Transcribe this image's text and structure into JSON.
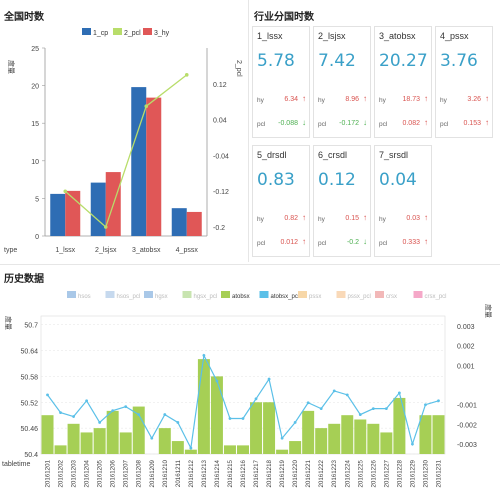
{
  "panels": {
    "overview_title": "全国时数",
    "category_title": "行业分国时数",
    "history_title": "历史数据"
  },
  "chart_data": [
    {
      "type": "bar",
      "title": "",
      "categories": [
        "1_lssx",
        "2_lsjsx",
        "3_atobsx",
        "4_pssx"
      ],
      "xlabel": "type",
      "ylabel": "度量",
      "y2label": "2_pcl",
      "ylim": [
        0,
        25
      ],
      "y2lim": [
        -0.22,
        0.2
      ],
      "yticks": [
        0,
        5,
        10,
        15,
        20,
        25
      ],
      "y2ticks": [
        0.12,
        0.04,
        -0.04,
        -0.12,
        -0.2
      ],
      "legend": "top",
      "series": [
        {
          "name": "1_cp",
          "type": "bar",
          "axis": "left",
          "color": "#2e6db4",
          "values": [
            5.6,
            7.1,
            19.8,
            3.7
          ]
        },
        {
          "name": "2_pcl",
          "type": "line",
          "axis": "right",
          "color": "#b8dd6a",
          "values": [
            -0.12,
            -0.2,
            0.07,
            0.14
          ]
        },
        {
          "name": "3_hy",
          "type": "bar",
          "axis": "left",
          "color": "#e05757",
          "values": [
            6.0,
            8.5,
            18.4,
            3.2
          ]
        }
      ]
    },
    {
      "type": "bar",
      "title": "",
      "xlabel": "tabletime",
      "ylabel": "度量",
      "y2label": "度量",
      "ylim": [
        50.4,
        50.72
      ],
      "y2lim": [
        -0.0035,
        0.0035
      ],
      "yticks": [
        50.4,
        50.46,
        50.52,
        50.58,
        50.64,
        50.7
      ],
      "ytick_labels": [
        "50.4",
        "50.46",
        "50.52",
        "50.58",
        "50.64",
        "50.7"
      ],
      "y2ticks": [
        0.003,
        0.002,
        0.001,
        -0.001,
        -0.002,
        -0.003
      ],
      "y2tick_labels": [
        "0.003",
        "0.002",
        "0.001",
        "-0.001",
        "-0.002",
        "-0.003"
      ],
      "legend": "top",
      "legend_items": [
        {
          "name": "hsos",
          "color": "#a9c8e8"
        },
        {
          "name": "hsos_pcl",
          "color": "#c6d9ee"
        },
        {
          "name": "hgsx",
          "color": "#a9c8e8"
        },
        {
          "name": "hgsx_pcl",
          "color": "#c8e4b0"
        },
        {
          "name": "atobsx",
          "color": "#a6cf55"
        },
        {
          "name": "atobsx_pcl",
          "color": "#5bc0e8"
        },
        {
          "name": "pssx",
          "color": "#f7d7a8"
        },
        {
          "name": "pssx_pcl",
          "color": "#f9d9b8"
        },
        {
          "name": "crsx",
          "color": "#f2b8b8"
        },
        {
          "name": "crsx_pcl",
          "color": "#f5a8c8"
        }
      ],
      "categories": [
        "20161201",
        "20161202",
        "20161203",
        "20161204",
        "20161205",
        "20161206",
        "20161207",
        "20161208",
        "20161209",
        "20161210",
        "20161211",
        "20161212",
        "20161213",
        "20161214",
        "20161215",
        "20161216",
        "20161217",
        "20161218",
        "20161219",
        "20161220",
        "20161221",
        "20161222",
        "20161223",
        "20161224",
        "20161225",
        "20161226",
        "20161227",
        "20161228",
        "20161229",
        "20161230",
        "20161231"
      ],
      "series": [
        {
          "name": "atobsx",
          "type": "bar",
          "axis": "left",
          "color": "#a6cf55",
          "values": [
            50.49,
            50.42,
            50.47,
            50.45,
            50.46,
            50.5,
            50.45,
            50.51,
            50.4,
            50.46,
            50.43,
            50.41,
            50.62,
            50.58,
            50.42,
            50.42,
            50.52,
            50.52,
            50.41,
            50.43,
            50.5,
            50.46,
            50.47,
            50.49,
            50.48,
            50.47,
            50.45,
            50.53,
            50.4,
            50.49,
            50.49
          ]
        },
        {
          "name": "atobsx_pcl",
          "type": "line",
          "axis": "right",
          "color": "#5bc0e8",
          "values": [
            -0.0005,
            -0.0014,
            -0.0016,
            -0.0008,
            -0.0019,
            -0.0013,
            -0.0011,
            -0.0015,
            -0.0027,
            -0.0015,
            -0.0019,
            -0.0032,
            0.0015,
            0.0002,
            -0.0017,
            -0.0017,
            -0.0007,
            0.0003,
            -0.0027,
            -0.0019,
            -0.0009,
            -0.0012,
            -0.0003,
            -0.0005,
            -0.0015,
            -0.0012,
            -0.0012,
            -0.0004,
            -0.003,
            -0.001,
            -0.0008
          ]
        }
      ]
    }
  ],
  "cards": [
    {
      "name": "1_lssx",
      "value": "5.78",
      "hy_label": "hy",
      "hy_value": "6.34",
      "hy_dir": "up",
      "pcl_label": "pcl",
      "pcl_value": "-0.088",
      "pcl_dir": "down"
    },
    {
      "name": "2_lsjsx",
      "value": "7.42",
      "hy_label": "hy",
      "hy_value": "8.96",
      "hy_dir": "up",
      "pcl_label": "pcl",
      "pcl_value": "-0.172",
      "pcl_dir": "down"
    },
    {
      "name": "3_atobsx",
      "value": "20.27",
      "hy_label": "hy",
      "hy_value": "18.73",
      "hy_dir": "up",
      "pcl_label": "pcl",
      "pcl_value": "0.082",
      "pcl_dir": "up"
    },
    {
      "name": "4_pssx",
      "value": "3.76",
      "hy_label": "hy",
      "hy_value": "3.26",
      "hy_dir": "up",
      "pcl_label": "pcl",
      "pcl_value": "0.153",
      "pcl_dir": "up"
    },
    {
      "name": "5_drsdl",
      "value": "0.83",
      "hy_label": "hy",
      "hy_value": "0.82",
      "hy_dir": "up",
      "pcl_label": "pcl",
      "pcl_value": "0.012",
      "pcl_dir": "up"
    },
    {
      "name": "6_crsdl",
      "value": "0.12",
      "hy_label": "hy",
      "hy_value": "0.15",
      "hy_dir": "up",
      "pcl_label": "pcl",
      "pcl_value": "-0.2",
      "pcl_dir": "down"
    },
    {
      "name": "7_srsdl",
      "value": "0.04",
      "hy_label": "hy",
      "hy_value": "0.03",
      "hy_dir": "up",
      "pcl_label": "pcl",
      "pcl_value": "0.333",
      "pcl_dir": "up"
    }
  ]
}
